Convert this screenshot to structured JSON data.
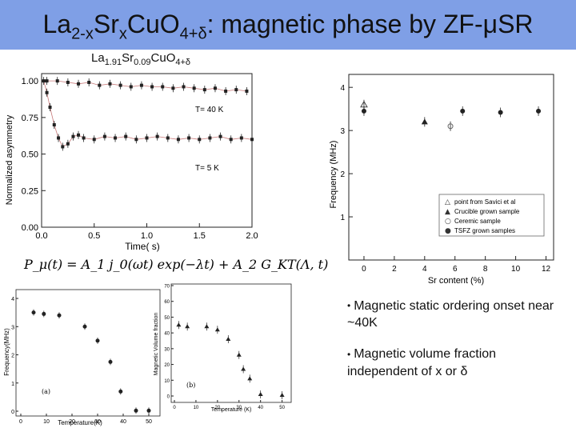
{
  "header": {
    "title_parts": {
      "a": "La",
      "b": "2-x",
      "c": "Sr",
      "d": "x",
      "e": "CuO",
      "f": "4+δ",
      "g": ": magnetic phase by ZF-μSR"
    }
  },
  "subtitle_parts": {
    "a": "La",
    "b": "1.91",
    "c": "Sr",
    "d": "0.09",
    "e": "CuO",
    "f": "4+δ"
  },
  "asym_plot": {
    "ylabel": "Normalized asymmetry",
    "xlabel": "Time( s)",
    "xticks": [
      "0.0",
      "0.5",
      "1.0",
      "1.5",
      "2.0"
    ],
    "yticks": [
      "1.00",
      "0.75",
      "0.50",
      "0.25",
      "0.00"
    ],
    "label_40K": "T= 40 K",
    "label_5K": "T= 5 K",
    "equation": "P_μ(t) = A_1 j_0(ωt) exp(−λt) + A_2 G_KT(Λ, t)"
  },
  "freq_plot": {
    "ylabel": "Frequency (MHz)",
    "xlabel": "Sr content (%)",
    "xticks": [
      "0",
      "2",
      "4",
      "6",
      "8",
      "10",
      "12"
    ],
    "yticks": [
      "4",
      "3",
      "2",
      "1"
    ],
    "legend": [
      {
        "marker": "△",
        "label": "point from Savici et al"
      },
      {
        "marker": "▲",
        "label": "Crucible grown sample"
      },
      {
        "marker": "○",
        "label": "Ceremic sample"
      },
      {
        "marker": "●",
        "label": "TSFZ grown samples"
      }
    ]
  },
  "temp_freq_plot": {
    "ylabel": "Frequency(MHz)",
    "xlabel": "Temperature(K)",
    "xticks": [
      "0",
      "10",
      "20",
      "30",
      "40",
      "50"
    ],
    "yticks": [
      "4",
      "3",
      "2",
      "1",
      "0"
    ],
    "panel_label": "(a)"
  },
  "volume_plot": {
    "ylabel": "Magnetic Volume fraction",
    "xlabel": "Temperature (K)",
    "xticks": [
      "0",
      "10",
      "20",
      "30",
      "40",
      "50"
    ],
    "yticks": [
      "70",
      "60",
      "50",
      "40",
      "30",
      "20",
      "10",
      "0"
    ],
    "panel_label": "(b)"
  },
  "bullets": [
    "Magnetic static ordering onset near ~40K",
    "Magnetic volume fraction independent of x or δ"
  ],
  "chart_data": [
    {
      "type": "scatter",
      "title": "",
      "xlabel": "Time( s)",
      "ylabel": "Normalized asymmetry",
      "xlim": [
        0,
        2.0
      ],
      "ylim": [
        0,
        1.05
      ],
      "series": [
        {
          "name": "T= 40 K",
          "x": [
            0.05,
            0.15,
            0.25,
            0.35,
            0.45,
            0.55,
            0.65,
            0.75,
            0.85,
            0.95,
            1.05,
            1.15,
            1.25,
            1.35,
            1.45,
            1.55,
            1.65,
            1.75,
            1.85,
            1.95
          ],
          "y": [
            1.0,
            1.0,
            0.99,
            0.98,
            0.99,
            0.97,
            0.98,
            0.97,
            0.96,
            0.97,
            0.96,
            0.96,
            0.95,
            0.96,
            0.95,
            0.94,
            0.95,
            0.93,
            0.94,
            0.93
          ]
        },
        {
          "name": "T= 5 K",
          "x": [
            0.02,
            0.05,
            0.08,
            0.12,
            0.16,
            0.2,
            0.25,
            0.3,
            0.35,
            0.4,
            0.5,
            0.6,
            0.7,
            0.8,
            0.9,
            1.0,
            1.1,
            1.2,
            1.3,
            1.4,
            1.5,
            1.6,
            1.7,
            1.8,
            1.9,
            2.0
          ],
          "y": [
            1.0,
            0.92,
            0.82,
            0.7,
            0.61,
            0.55,
            0.57,
            0.62,
            0.63,
            0.61,
            0.6,
            0.62,
            0.61,
            0.62,
            0.6,
            0.61,
            0.62,
            0.61,
            0.6,
            0.61,
            0.6,
            0.61,
            0.62,
            0.6,
            0.61,
            0.6
          ]
        }
      ]
    },
    {
      "type": "scatter",
      "xlabel": "Sr content (%)",
      "ylabel": "Frequency (MHz)",
      "xlim": [
        -1,
        12.5
      ],
      "ylim": [
        0,
        4.3
      ],
      "series": [
        {
          "name": "point from Savici et al",
          "x": [
            0
          ],
          "y": [
            3.6
          ]
        },
        {
          "name": "Crucible grown sample",
          "x": [
            4
          ],
          "y": [
            3.2
          ]
        },
        {
          "name": "Ceremic sample",
          "x": [
            5.7
          ],
          "y": [
            3.1
          ]
        },
        {
          "name": "TSFZ grown samples",
          "x": [
            0,
            6.5,
            9,
            11.5
          ],
          "y": [
            3.45,
            3.45,
            3.42,
            3.45
          ]
        }
      ]
    },
    {
      "type": "scatter",
      "xlabel": "Temperature(K)",
      "ylabel": "Frequency(MHz)",
      "xlim": [
        0,
        50
      ],
      "ylim": [
        0,
        4.2
      ],
      "series": [
        {
          "name": "frequency",
          "x": [
            5,
            9,
            15,
            25,
            30,
            35,
            39,
            45,
            50
          ],
          "y": [
            3.5,
            3.45,
            3.4,
            3.0,
            2.5,
            1.75,
            0.7,
            0.02,
            0.02
          ]
        }
      ]
    },
    {
      "type": "scatter",
      "xlabel": "Temperature (K)",
      "ylabel": "Magnetic Volume fraction",
      "xlim": [
        0,
        52
      ],
      "ylim": [
        0,
        70
      ],
      "series": [
        {
          "name": "volume fraction",
          "x": [
            2,
            6,
            15,
            20,
            25,
            30,
            32,
            35,
            40,
            50
          ],
          "y": [
            45,
            44,
            44,
            42,
            36,
            26,
            17,
            11,
            1,
            0.5
          ]
        }
      ]
    }
  ]
}
